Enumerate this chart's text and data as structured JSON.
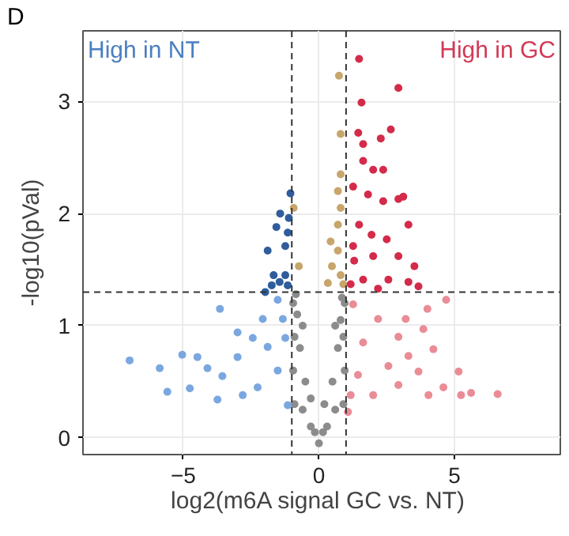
{
  "chart_data": {
    "type": "scatter",
    "xlabel": "log2(m6A signal  GC vs. NT)",
    "ylabel": "-log10(pVal)",
    "annotations": [
      "High in NT",
      "High in GC",
      "D"
    ],
    "xlim": [
      -8.7,
      8.9
    ],
    "ylim": [
      -0.15,
      3.63
    ],
    "xticks": [
      -5,
      0,
      5
    ],
    "yticks": [
      0,
      1,
      2,
      3
    ],
    "grid": true,
    "marker": "circle",
    "ref_lines": [
      {
        "axis": "x",
        "value": -1,
        "line_style": "dashed"
      },
      {
        "axis": "x",
        "value": 1,
        "line_style": "dashed"
      },
      {
        "axis": "y",
        "value": 1.3,
        "line_style": "dashed"
      }
    ],
    "series": [
      {
        "color": "#8c8c8c",
        "x": [
          0,
          -0.3,
          0.3,
          -0.6,
          0.6,
          -0.9,
          0.9,
          -0.95,
          0.95,
          -0.9,
          0.9,
          -0.95,
          0.95,
          -0.5,
          0.5,
          -0.7,
          0.7,
          -0.8,
          0.8,
          -0.3,
          0.2,
          -0.6,
          0.6,
          -0.85,
          0.85,
          -0.15,
          0.15
        ],
        "values": [
          -0.05,
          0.1,
          0.1,
          0.25,
          0.25,
          0.3,
          0.3,
          0.6,
          0.6,
          0.9,
          0.9,
          1.2,
          1.2,
          0.5,
          0.5,
          0.8,
          0.8,
          1.1,
          1.05,
          0.35,
          0.3,
          1.0,
          1.0,
          1.28,
          1.25,
          0.05,
          0.05
        ]
      },
      {
        "color": "#7ba7e0",
        "x": [
          -3.65,
          -3.0,
          -6.98,
          -5.87,
          -5.04,
          -4.48,
          -5.59,
          -4.76,
          -4.11,
          -3.56,
          -3.0,
          -2.44,
          -2.07,
          -1.52,
          -1.33,
          -1.89,
          -2.81,
          -1.52,
          -1.15,
          -3.74,
          -2.26,
          -1.24
        ],
        "values": [
          1.15,
          0.94,
          0.69,
          0.62,
          0.74,
          0.72,
          0.41,
          0.44,
          0.62,
          0.55,
          0.72,
          0.89,
          1.06,
          1.23,
          1.06,
          0.81,
          0.38,
          0.6,
          0.29,
          0.34,
          0.45,
          0.89
        ]
      },
      {
        "color": "#2f5c9b",
        "x": [
          -1.05,
          -1.43,
          -1.57,
          -1.89,
          -1.11,
          -1.15,
          -1.24,
          -1.67,
          -1.24,
          -1.15,
          -1.74,
          -1.45,
          -1.98
        ],
        "values": [
          2.18,
          2.0,
          1.88,
          1.67,
          1.96,
          1.83,
          1.71,
          1.45,
          1.45,
          1.36,
          1.36,
          1.39,
          1.3
        ]
      },
      {
        "color": "#c8a56b",
        "x": [
          -0.93,
          -0.74,
          0.74,
          0.8,
          0.8,
          0.7,
          0.8,
          0.7,
          0.43,
          0.7,
          0.48,
          0.8,
          0.9,
          0.33
        ],
        "values": [
          2.05,
          1.53,
          3.23,
          2.71,
          2.35,
          2.2,
          2.05,
          1.9,
          1.75,
          1.67,
          1.53,
          1.45,
          1.37,
          1.38
        ]
      },
      {
        "color": "#d42b4a",
        "x": [
          1.48,
          2.93,
          1.57,
          2.65,
          1.45,
          1.63,
          2.28,
          1.63,
          2.0,
          2.37,
          1.26,
          3.11,
          1.81,
          2.37,
          2.93,
          3.3,
          1.48,
          1.94,
          2.5,
          1.26,
          2.93,
          3.52,
          1.3,
          2.0,
          3.3,
          3.67,
          2.56,
          1.63,
          1.17,
          2.18
        ],
        "values": [
          3.38,
          3.12,
          2.99,
          2.75,
          2.72,
          2.62,
          2.67,
          2.47,
          2.39,
          2.39,
          2.24,
          2.15,
          2.17,
          2.11,
          2.13,
          1.9,
          1.9,
          1.81,
          1.77,
          1.71,
          1.62,
          1.53,
          1.58,
          1.62,
          1.39,
          1.35,
          1.41,
          1.41,
          1.37,
          1.33
        ]
      },
      {
        "color": "#ea8c96",
        "x": [
          4.69,
          4.0,
          3.2,
          3.85,
          4.22,
          5.15,
          5.61,
          5.24,
          6.59,
          4.59,
          4.04,
          2.93,
          2.0,
          1.07,
          2.56,
          1.63,
          3.3,
          1.26,
          2.18,
          2.93,
          1.44,
          3.67,
          1.17
        ],
        "values": [
          1.23,
          1.15,
          1.06,
          0.97,
          0.79,
          0.59,
          0.4,
          0.38,
          0.39,
          0.45,
          0.38,
          0.47,
          0.38,
          0.23,
          0.64,
          0.85,
          0.73,
          1.19,
          1.06,
          0.9,
          0.56,
          0.59,
          0.38
        ]
      }
    ]
  }
}
